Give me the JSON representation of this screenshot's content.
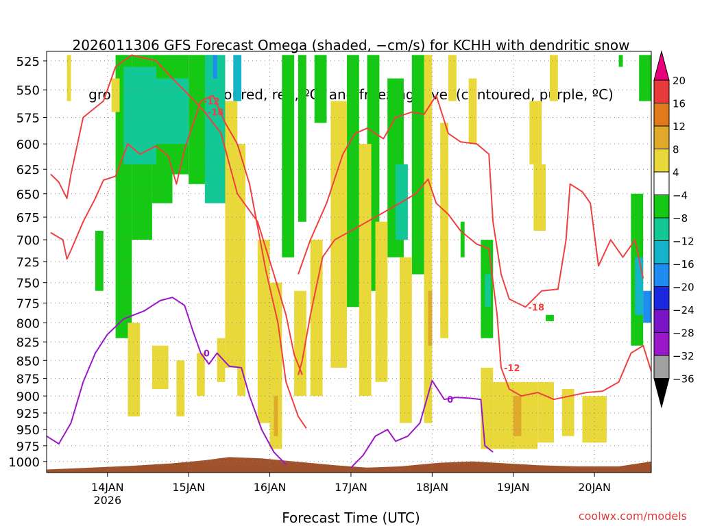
{
  "chart_data": {
    "type": "heatmap",
    "title_lines": [
      "2026011306 GFS Forecast Omega (shaded, −cm/s) for KCHH with dendritic snow",
      "growth region (contoured, red, ºC) and freezing level (contoured, purple, ºC)"
    ],
    "xlabel": "Forecast Time (UTC)",
    "credit": "coolwx.com/models",
    "x_ticks": [
      "14JAN\n2026",
      "15JAN",
      "16JAN",
      "17JAN",
      "18JAN",
      "19JAN",
      "20JAN"
    ],
    "xlim_days": [
      13.25,
      20.7
    ],
    "y_ticks": [
      525,
      550,
      575,
      600,
      625,
      650,
      675,
      700,
      725,
      750,
      775,
      800,
      825,
      850,
      875,
      900,
      925,
      950,
      975,
      1000
    ],
    "ylim_hpa": [
      517,
      1018
    ],
    "colorbar": {
      "labels": [
        "20",
        "16",
        "12",
        "8",
        "4",
        "−4",
        "−8",
        "−12",
        "−16",
        "−20",
        "−24",
        "−28",
        "−32",
        "−36"
      ],
      "colors": [
        "#e8007a",
        "#e83a3a",
        "#e07a1a",
        "#e0aa2a",
        "#e8d83a",
        "#ffffff",
        "#14c814",
        "#12c896",
        "#14b4c8",
        "#1e8cf0",
        "#1a28e0",
        "#7a14c8",
        "#9a18c8",
        "#a0a0a0",
        "#000000"
      ]
    },
    "series": [
      {
        "name": "-12",
        "color": "#ef4040",
        "points": [
          [
            13.3,
            692
          ],
          [
            13.45,
            700
          ],
          [
            13.5,
            722
          ],
          [
            13.55,
            712
          ],
          [
            13.7,
            680
          ],
          [
            13.85,
            655
          ],
          [
            13.95,
            636
          ],
          [
            14.1,
            632
          ],
          [
            14.25,
            600
          ],
          [
            14.4,
            610
          ],
          [
            14.6,
            602
          ],
          [
            14.75,
            612
          ],
          [
            14.85,
            640
          ],
          [
            14.95,
            605
          ],
          [
            15.15,
            560
          ],
          [
            15.3,
            555
          ],
          [
            15.45,
            580
          ],
          [
            15.6,
            600
          ],
          [
            15.75,
            640
          ],
          [
            15.95,
            735
          ],
          [
            16.1,
            800
          ],
          [
            16.2,
            880
          ],
          [
            16.35,
            930
          ],
          [
            16.45,
            948
          ]
        ]
      },
      {
        "name": "-18",
        "color": "#ef4040",
        "points": [
          [
            13.3,
            630
          ],
          [
            13.4,
            638
          ],
          [
            13.5,
            655
          ],
          [
            13.55,
            630
          ],
          [
            13.7,
            575
          ],
          [
            13.95,
            560
          ],
          [
            14.1,
            530
          ],
          [
            14.3,
            520
          ],
          [
            14.6,
            525
          ],
          [
            14.8,
            540
          ],
          [
            15.05,
            558
          ],
          [
            15.2,
            570
          ],
          [
            15.4,
            590
          ],
          [
            15.6,
            650
          ],
          [
            15.85,
            680
          ],
          [
            16.05,
            740
          ],
          [
            16.2,
            790
          ],
          [
            16.3,
            842
          ],
          [
            16.4,
            870
          ]
        ]
      },
      {
        "name": "-12",
        "color": "#ef4040",
        "points": [
          [
            16.35,
            870
          ],
          [
            16.4,
            850
          ],
          [
            16.5,
            790
          ],
          [
            16.65,
            720
          ],
          [
            16.8,
            700
          ],
          [
            17.0,
            690
          ],
          [
            17.2,
            680
          ],
          [
            17.4,
            670
          ],
          [
            17.6,
            660
          ],
          [
            17.8,
            650
          ],
          [
            17.95,
            635
          ],
          [
            18.05,
            660
          ],
          [
            18.2,
            672
          ],
          [
            18.35,
            690
          ],
          [
            18.55,
            705
          ],
          [
            18.7,
            710
          ],
          [
            18.8,
            790
          ],
          [
            18.85,
            860
          ],
          [
            18.95,
            890
          ],
          [
            19.1,
            900
          ],
          [
            19.3,
            895
          ],
          [
            19.5,
            905
          ],
          [
            19.7,
            900
          ],
          [
            19.9,
            895
          ],
          [
            20.1,
            893
          ],
          [
            20.3,
            880
          ],
          [
            20.45,
            840
          ],
          [
            20.6,
            830
          ],
          [
            20.7,
            865
          ]
        ]
      },
      {
        "name": "-18",
        "color": "#ef4040",
        "points": [
          [
            16.35,
            740
          ],
          [
            16.5,
            700
          ],
          [
            16.7,
            660
          ],
          [
            16.9,
            610
          ],
          [
            17.05,
            590
          ],
          [
            17.2,
            585
          ],
          [
            17.4,
            595
          ],
          [
            17.55,
            575
          ],
          [
            17.75,
            570
          ],
          [
            17.9,
            572
          ],
          [
            18.05,
            555
          ],
          [
            18.2,
            590
          ],
          [
            18.35,
            598
          ],
          [
            18.55,
            600
          ],
          [
            18.7,
            610
          ],
          [
            18.75,
            680
          ],
          [
            18.85,
            740
          ],
          [
            18.95,
            770
          ],
          [
            19.15,
            780
          ],
          [
            19.35,
            760
          ],
          [
            19.55,
            758
          ],
          [
            19.65,
            700
          ],
          [
            19.7,
            640
          ],
          [
            19.85,
            648
          ],
          [
            19.95,
            660
          ],
          [
            20.05,
            730
          ],
          [
            20.2,
            700
          ],
          [
            20.35,
            720
          ],
          [
            20.5,
            700
          ],
          [
            20.6,
            745
          ]
        ]
      },
      {
        "name": "0",
        "color": "#9a18c8",
        "points": [
          [
            13.25,
            960
          ],
          [
            13.4,
            972
          ],
          [
            13.55,
            940
          ],
          [
            13.7,
            880
          ],
          [
            13.85,
            840
          ],
          [
            14.0,
            815
          ],
          [
            14.2,
            795
          ],
          [
            14.45,
            785
          ],
          [
            14.65,
            772
          ],
          [
            14.8,
            768
          ],
          [
            14.95,
            778
          ],
          [
            15.05,
            810
          ],
          [
            15.15,
            840
          ],
          [
            15.25,
            855
          ],
          [
            15.35,
            840
          ],
          [
            15.5,
            858
          ],
          [
            15.65,
            860
          ],
          [
            15.75,
            900
          ],
          [
            15.9,
            950
          ],
          [
            16.05,
            985
          ],
          [
            16.2,
            1005
          ]
        ]
      },
      {
        "name": "0",
        "color": "#9a18c8",
        "points": [
          [
            17.0,
            1010
          ],
          [
            17.15,
            990
          ],
          [
            17.3,
            960
          ],
          [
            17.45,
            950
          ],
          [
            17.55,
            968
          ],
          [
            17.7,
            960
          ],
          [
            17.85,
            940
          ],
          [
            18.0,
            878
          ],
          [
            18.15,
            905
          ],
          [
            18.3,
            902
          ],
          [
            18.45,
            903
          ],
          [
            18.6,
            905
          ],
          [
            18.65,
            975
          ],
          [
            18.75,
            985
          ]
        ]
      }
    ],
    "shading_note": "Omega field shaded per colorbar"
  }
}
